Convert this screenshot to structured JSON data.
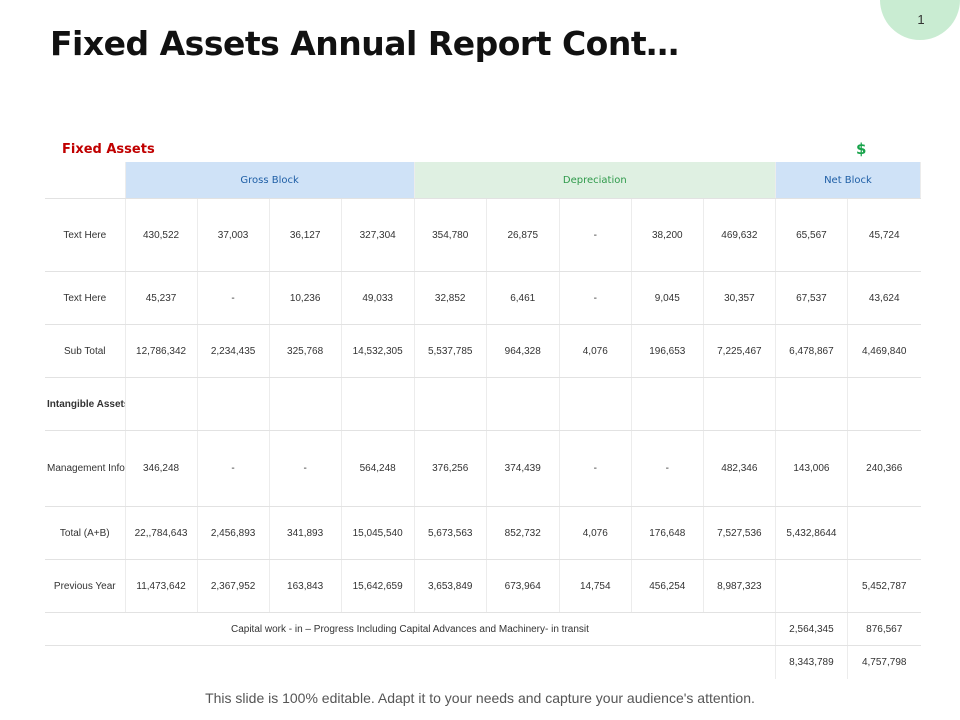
{
  "page": {
    "number": "1",
    "title": "Fixed Assets Annual Report Cont…",
    "footer": "This slide is 100% editable. Adapt it to your needs and capture your audience's attention."
  },
  "table": {
    "caption": "Fixed Assets",
    "currency": "$",
    "groups": {
      "gross": "Gross Block",
      "depreciation": "Depreciation",
      "net": "Net Block"
    },
    "rows": [
      {
        "label": "Text Here",
        "cells": [
          "430,522",
          "37,003",
          "36,127",
          "327,304",
          "354,780",
          "26,875",
          "-",
          "38,200",
          "469,632",
          "65,567",
          "45,724"
        ]
      },
      {
        "label": "Text Here",
        "cells": [
          "45,237",
          "-",
          "10,236",
          "49,033",
          "32,852",
          "6,461",
          "-",
          "9,045",
          "30,357",
          "67,537",
          "43,624"
        ]
      },
      {
        "label": "Sub Total",
        "cells": [
          "12,786,342",
          "2,234,435",
          "325,768",
          "14,532,305",
          "5,537,785",
          "964,328",
          "4,076",
          "196,653",
          "7,225,467",
          "6,478,867",
          "4,469,840"
        ]
      },
      {
        "label": "Intangible Assets (B)",
        "cells": [
          "",
          "",
          "",
          "",
          "",
          "",
          "",
          "",
          "",
          "",
          ""
        ]
      },
      {
        "label": "Management Information Systems",
        "cells": [
          "346,248",
          "-",
          "-",
          "564,248",
          "376,256",
          "374,439",
          "-",
          "-",
          "482,346",
          "143,006",
          "240,366"
        ]
      },
      {
        "label": "Total (A+B)",
        "cells": [
          "22,,784,643",
          "2,456,893",
          "341,893",
          "15,045,540",
          "5,673,563",
          "852,732",
          "4,076",
          "176,648",
          "7,527,536",
          "5,432,8644",
          ""
        ]
      },
      {
        "label": "Previous Year",
        "cells": [
          "11,473,642",
          "2,367,952",
          "163,843",
          "15,642,659",
          "3,653,849",
          "673,964",
          "14,754",
          "456,254",
          "8,987,323",
          "",
          "5,452,787"
        ]
      }
    ],
    "capital_row": {
      "label": "Capital work - in – Progress Including Capital Advances and Machinery- in transit",
      "net": "2,564,345",
      "prev": "876,567"
    },
    "grand_row": {
      "net": "8,343,789",
      "prev": "4,757,798"
    }
  }
}
